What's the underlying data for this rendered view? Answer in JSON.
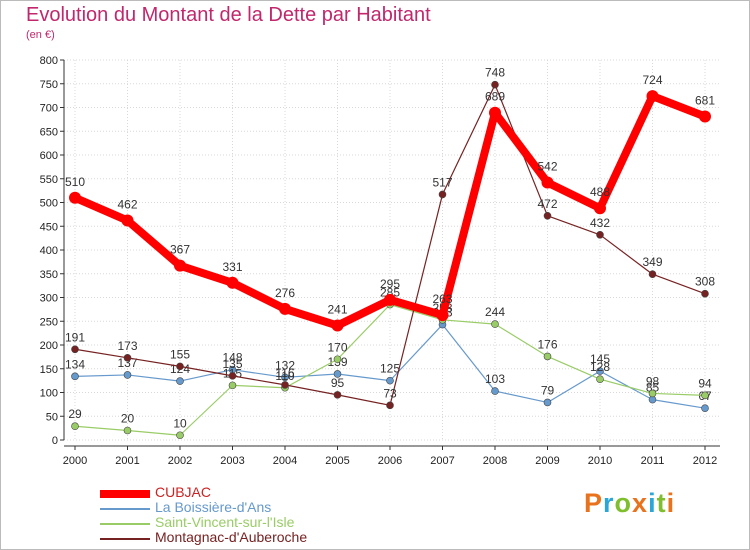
{
  "header": {
    "title": "Evolution du Montant de la Dette par Habitant",
    "subtitle": "(en €)"
  },
  "logo": {
    "text": "Proxiti",
    "colors": [
      "#e8731c",
      "#2aa6d8",
      "#7fbf2e",
      "#e8731c",
      "#2aa6d8",
      "#7fbf2e",
      "#e8731c"
    ]
  },
  "chart_data": {
    "type": "line",
    "x": [
      "2000",
      "2001",
      "2002",
      "2003",
      "2004",
      "2005",
      "2006",
      "2007",
      "2008",
      "2009",
      "2010",
      "2011",
      "2012"
    ],
    "ylim": [
      0,
      800
    ],
    "yticks": [
      "0",
      "50",
      "100",
      "150",
      "200",
      "250",
      "300",
      "350",
      "400",
      "450",
      "500",
      "550",
      "600",
      "650",
      "700",
      "750",
      "800"
    ],
    "grid": true,
    "legend_position": "bottom-left",
    "series": [
      {
        "name": "CUBJAC",
        "color": "#ff0000",
        "values": [
          510,
          462,
          367,
          331,
          276,
          241,
          295,
          263,
          689,
          542,
          488,
          724,
          681
        ]
      },
      {
        "name": "La Boissière-d'Ans",
        "color": "#6699cc",
        "values": [
          134,
          137,
          124,
          148,
          132,
          139,
          125,
          243,
          103,
          79,
          145,
          85,
          67
        ]
      },
      {
        "name": "Saint-Vincent-sur-l'Isle",
        "color": "#99cc66",
        "values": [
          29,
          20,
          10,
          115,
          110,
          170,
          285,
          253,
          244,
          176,
          128,
          98,
          94
        ]
      },
      {
        "name": "Montagnac-d'Auberoche",
        "color": "#772222",
        "values": [
          191,
          173,
          155,
          135,
          116,
          95,
          73,
          517,
          748,
          472,
          432,
          349,
          308
        ]
      }
    ]
  }
}
